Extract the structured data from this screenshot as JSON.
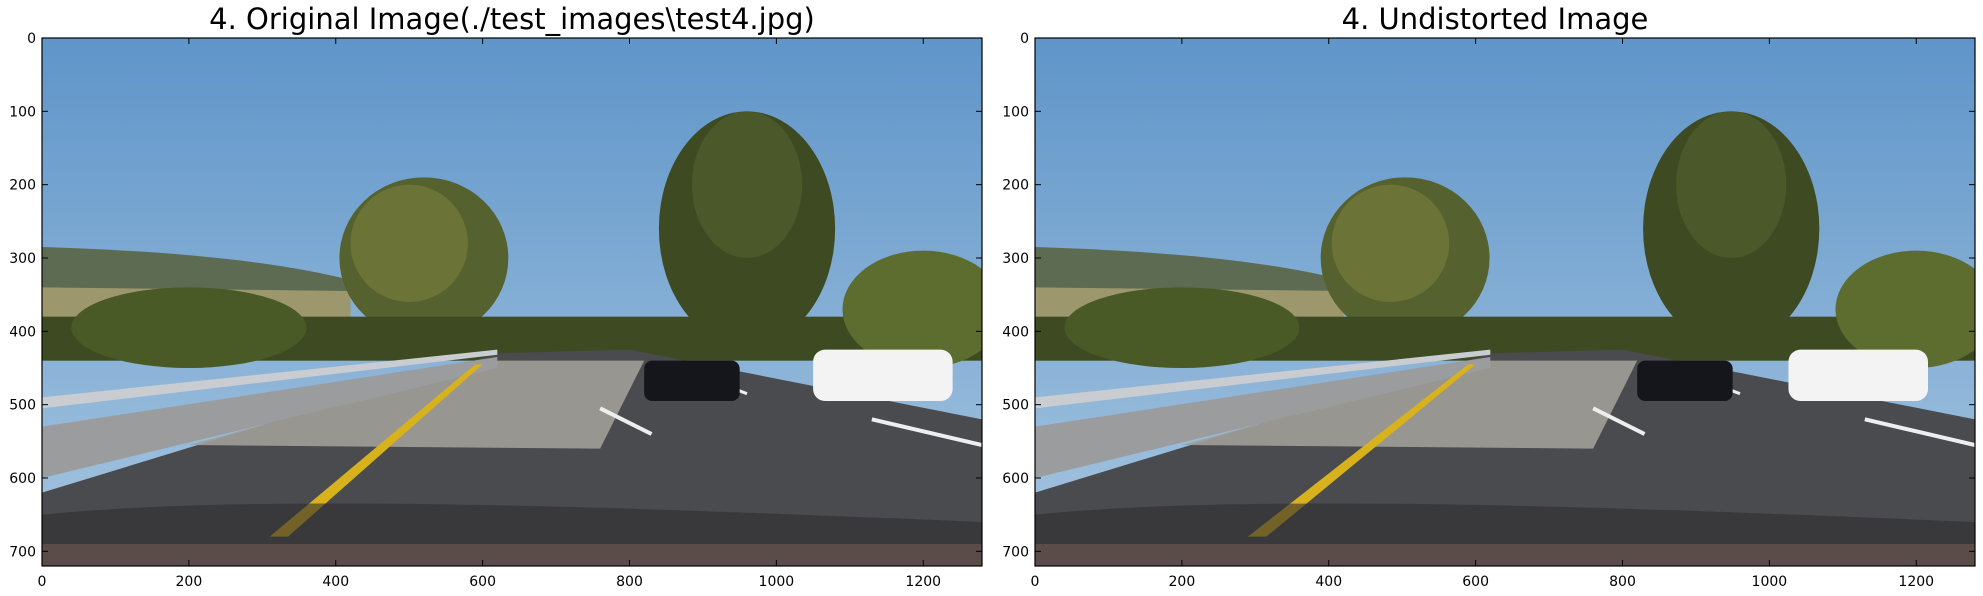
{
  "panels": [
    {
      "title": "4. Original Image(./test_images\\test4.jpg)",
      "x_ticks": [
        "0",
        "200",
        "400",
        "600",
        "800",
        "1000",
        "1200"
      ],
      "y_ticks": [
        "0",
        "100",
        "200",
        "300",
        "400",
        "500",
        "600",
        "700"
      ]
    },
    {
      "title": "4. Undistorted Image",
      "x_ticks": [
        "0",
        "200",
        "400",
        "600",
        "800",
        "1000",
        "1200"
      ],
      "y_ticks": [
        "0",
        "100",
        "200",
        "300",
        "400",
        "500",
        "600",
        "700"
      ]
    }
  ],
  "image_extent": {
    "width": 1280,
    "height": 720
  },
  "colors": {
    "sky_top": "#5f95c9",
    "sky_bottom": "#a7c6e0",
    "road": "#4a4b4e",
    "lane_yellow": "#d8b21c",
    "trees": "#3e4a22"
  }
}
